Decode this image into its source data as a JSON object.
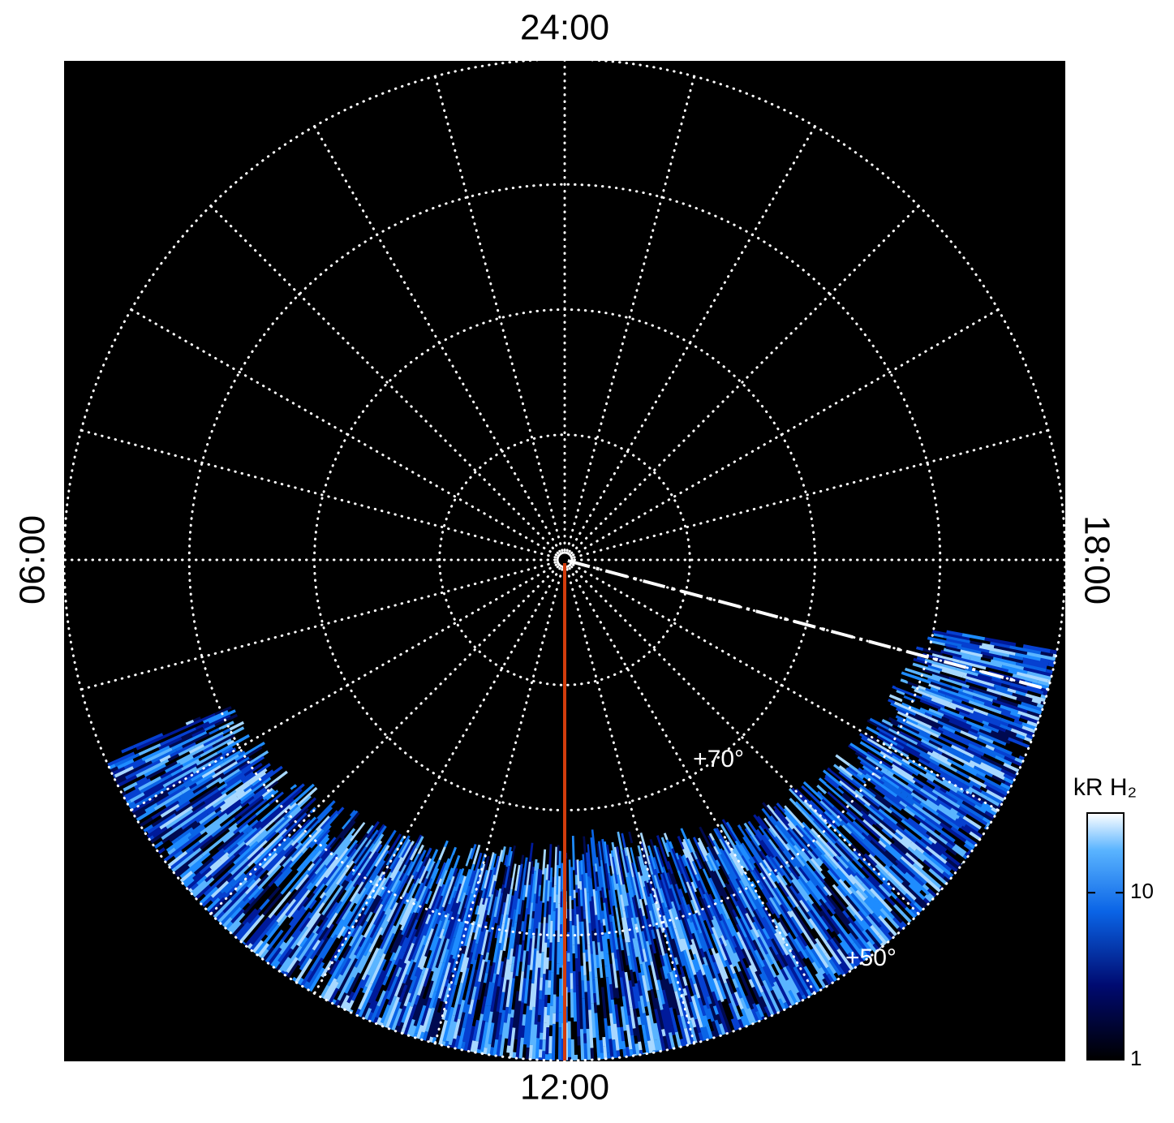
{
  "chart_data": {
    "type": "polar-map",
    "local_time_labels": [
      {
        "value": 24,
        "label": "24:00"
      },
      {
        "value": 6,
        "label": "06:00"
      },
      {
        "value": 12,
        "label": "12:00"
      },
      {
        "value": 18,
        "label": "18:00"
      }
    ],
    "rlim": [
      90,
      50
    ],
    "latitude_circles": [
      80,
      70,
      60,
      50
    ],
    "latitude_labels": [
      {
        "value": 70,
        "label": "+70°"
      },
      {
        "value": 50,
        "label": "+50°"
      }
    ],
    "meridian_hours": [
      0,
      1,
      2,
      3,
      4,
      5,
      6,
      7,
      8,
      9,
      10,
      11,
      12,
      13,
      14,
      15,
      16,
      17,
      18,
      19,
      20,
      21,
      22,
      23
    ],
    "lines": [
      {
        "local_time": 12,
        "color": "#d23c0c",
        "style": "solid"
      },
      {
        "local_time": 17,
        "color": "#ffffff",
        "style": "dash-dot"
      }
    ],
    "colorbar": {
      "title": "kR H₂",
      "scale": "log",
      "lim": [
        1,
        30
      ],
      "ticks": [
        1,
        10
      ]
    }
  }
}
